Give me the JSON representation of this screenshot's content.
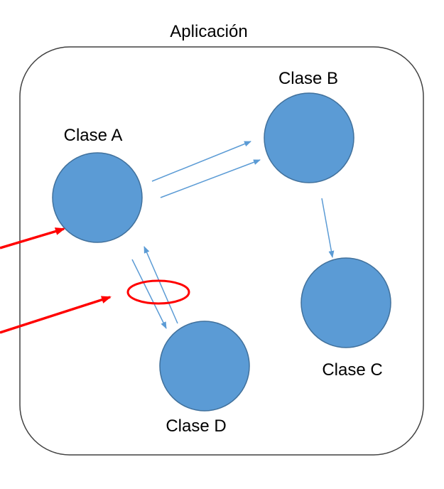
{
  "diagram": {
    "title": "Aplicación",
    "nodes": [
      {
        "id": "a",
        "label": "Clase A"
      },
      {
        "id": "b",
        "label": "Clase B"
      },
      {
        "id": "c",
        "label": "Clase C"
      },
      {
        "id": "d",
        "label": "Clase D"
      }
    ],
    "connections": [
      {
        "from": "a",
        "to": "b",
        "count": 2
      },
      {
        "from": "b",
        "to": "c",
        "count": 1
      },
      {
        "from": "a",
        "to": "d",
        "count": 1
      },
      {
        "from": "d",
        "to": "a",
        "count": 1
      }
    ],
    "annotations": [
      {
        "kind": "external-arrow",
        "target": "a"
      },
      {
        "kind": "external-arrow",
        "target": "a-d-link"
      },
      {
        "kind": "highlight-ellipse",
        "target": "a-d-link"
      }
    ]
  },
  "colors": {
    "node_fill": "#5b9bd5",
    "node_stroke": "#41719c",
    "connector": "#5b9bd5",
    "container_stroke": "#404040",
    "annotation": "#ff0000"
  }
}
